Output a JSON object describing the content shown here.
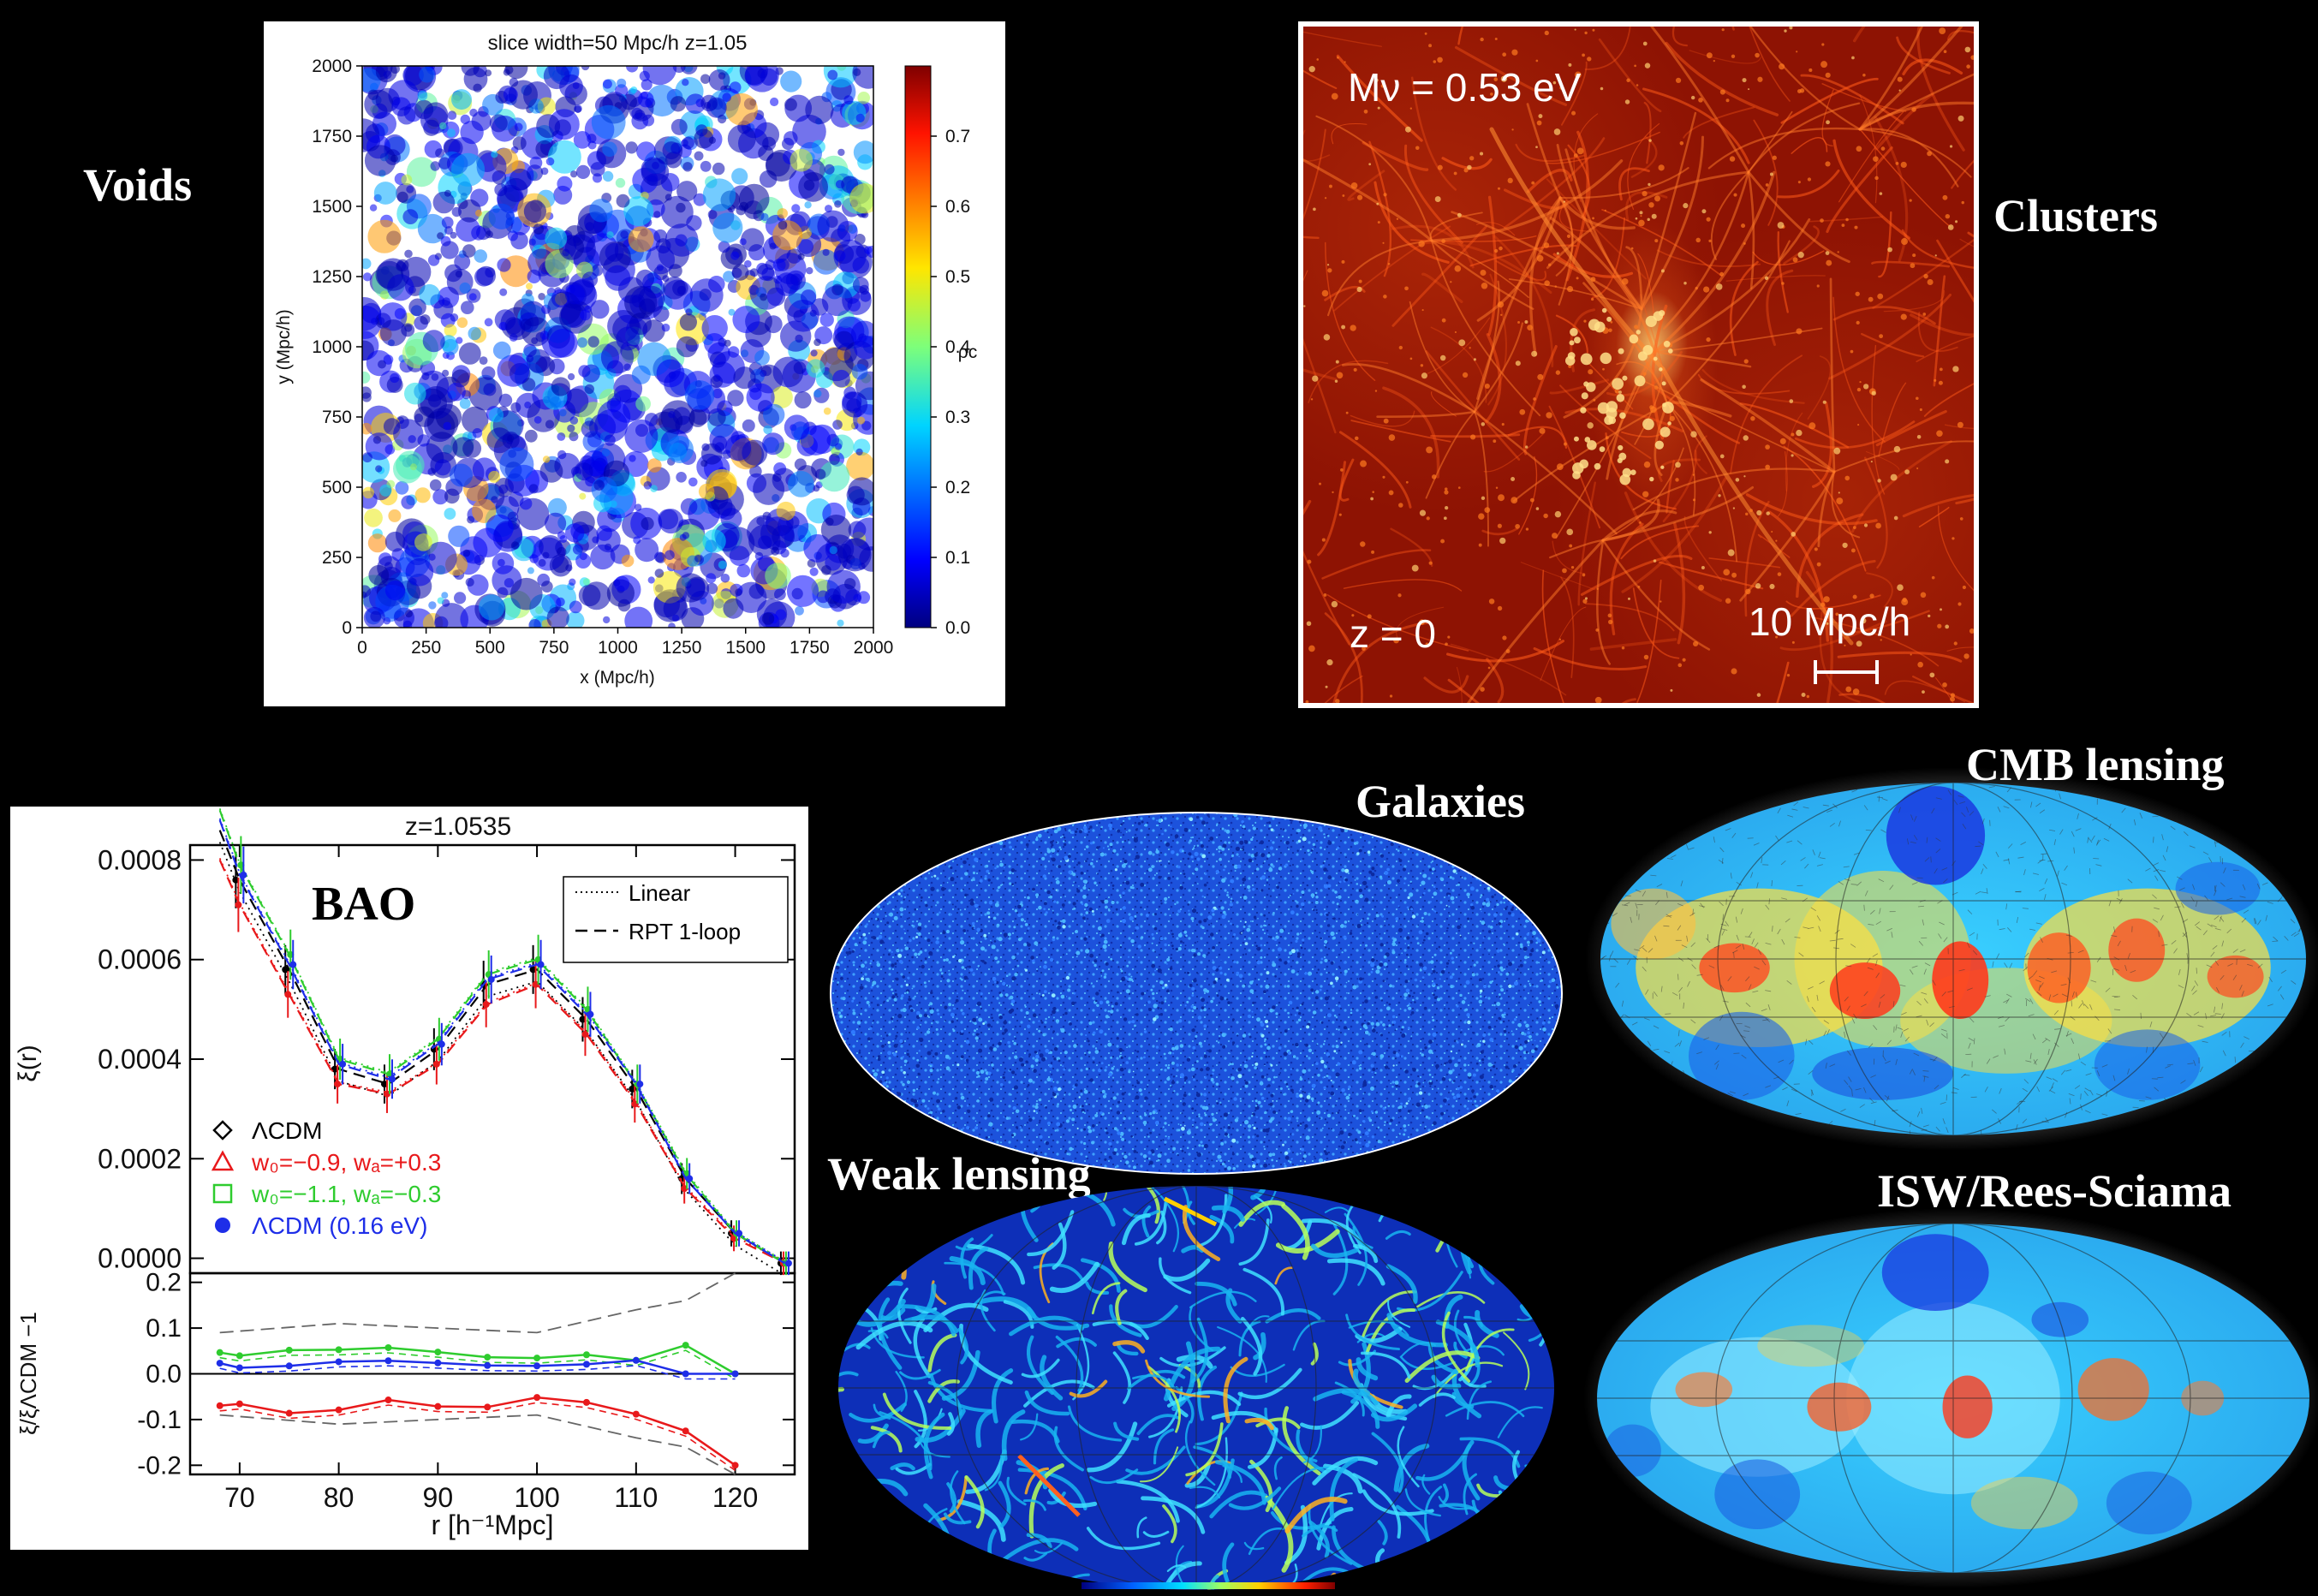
{
  "labels": {
    "voids": "Voids",
    "clusters": "Clusters",
    "galaxies": "Galaxies",
    "cmb_lensing": "CMB lensing",
    "weak_lensing": "Weak lensing",
    "isw": "ISW/Rees-Sciama",
    "bao": "BAO"
  },
  "voids_plot": {
    "title": "slice width=50 Mpc/h   z=1.05",
    "xlabel": "x (Mpc/h)",
    "ylabel": "y (Mpc/h)",
    "xticks": [
      "0",
      "250",
      "500",
      "750",
      "1000",
      "1250",
      "1500",
      "1750",
      "2000"
    ],
    "yticks": [
      "0",
      "250",
      "500",
      "750",
      "1000",
      "1250",
      "1500",
      "1750",
      "2000"
    ],
    "colorbar_label": "ρc",
    "colorbar_ticks": [
      "0.0",
      "0.1",
      "0.2",
      "0.3",
      "0.4",
      "0.5",
      "0.6",
      "0.7"
    ]
  },
  "clusters_panel": {
    "mass_label": "Mν = 0.53 eV",
    "redshift_label": "z = 0",
    "scale_label": "10 Mpc/h"
  },
  "bao_plot": {
    "title": "z=1.0535",
    "xlabel": "r [h⁻¹Mpc]",
    "ylabel_top": "ξ(r)",
    "ylabel_bottom": "ξ/ξΛCDM −1",
    "xticks": [
      "70",
      "80",
      "90",
      "100",
      "110",
      "120"
    ],
    "yticks_top": [
      "0.0000",
      "0.0002",
      "0.0004",
      "0.0006",
      "0.0008"
    ],
    "yticks_bottom": [
      "-0.2",
      "-0.1",
      "0.0",
      "0.1",
      "0.2"
    ],
    "legend_lines": [
      "Linear",
      "RPT 1-loop"
    ],
    "legend_models": [
      {
        "text": "ΛCDM",
        "color": "#000000",
        "marker": "diamond"
      },
      {
        "text": "w₀=−0.9, wₐ=+0.3",
        "color": "#e8191b",
        "marker": "triangle"
      },
      {
        "text": "w₀=−1.1, wₐ=−0.3",
        "color": "#2ecc2e",
        "marker": "square"
      },
      {
        "text": "ΛCDM (0.16 eV)",
        "color": "#1e2ee8",
        "marker": "circle"
      }
    ]
  },
  "chart_data": {
    "type": "line",
    "title": "z=1.0535",
    "xlabel": "r [h⁻¹Mpc]",
    "ylabel": "ξ(r)",
    "x": [
      68,
      70,
      75,
      80,
      85,
      90,
      95,
      100,
      105,
      110,
      115,
      120,
      125
    ],
    "ylim": [
      -3e-05,
      0.00083
    ],
    "xlim": [
      65,
      126
    ],
    "series": [
      {
        "name": "ΛCDM",
        "color": "#000000",
        "values": [
          0.00086,
          0.00076,
          0.00058,
          0.00038,
          0.00035,
          0.00042,
          0.00055,
          0.00058,
          0.00048,
          0.00034,
          0.00016,
          5e-05,
          -1e-05
        ]
      },
      {
        "name": "w₀=−0.9, wₐ=+0.3",
        "color": "#e8191b",
        "values": [
          0.0008,
          0.00071,
          0.00053,
          0.00035,
          0.00033,
          0.00039,
          0.00051,
          0.00055,
          0.00045,
          0.00031,
          0.00014,
          4e-05,
          -1e-05
        ]
      },
      {
        "name": "w₀=−1.1, wₐ=−0.3",
        "color": "#2ecc2e",
        "values": [
          0.0009,
          0.00079,
          0.00061,
          0.0004,
          0.00037,
          0.00044,
          0.00057,
          0.0006,
          0.0005,
          0.00035,
          0.00017,
          5e-05,
          -1e-05
        ]
      },
      {
        "name": "ΛCDM (0.16 eV)",
        "color": "#1e2ee8",
        "values": [
          0.00088,
          0.00077,
          0.00059,
          0.00039,
          0.00036,
          0.00043,
          0.00056,
          0.00059,
          0.00049,
          0.00035,
          0.00016,
          5e-05,
          -1e-05
        ]
      }
    ]
  },
  "colors": {
    "background": "#000000",
    "label_text": "#ffffff"
  }
}
